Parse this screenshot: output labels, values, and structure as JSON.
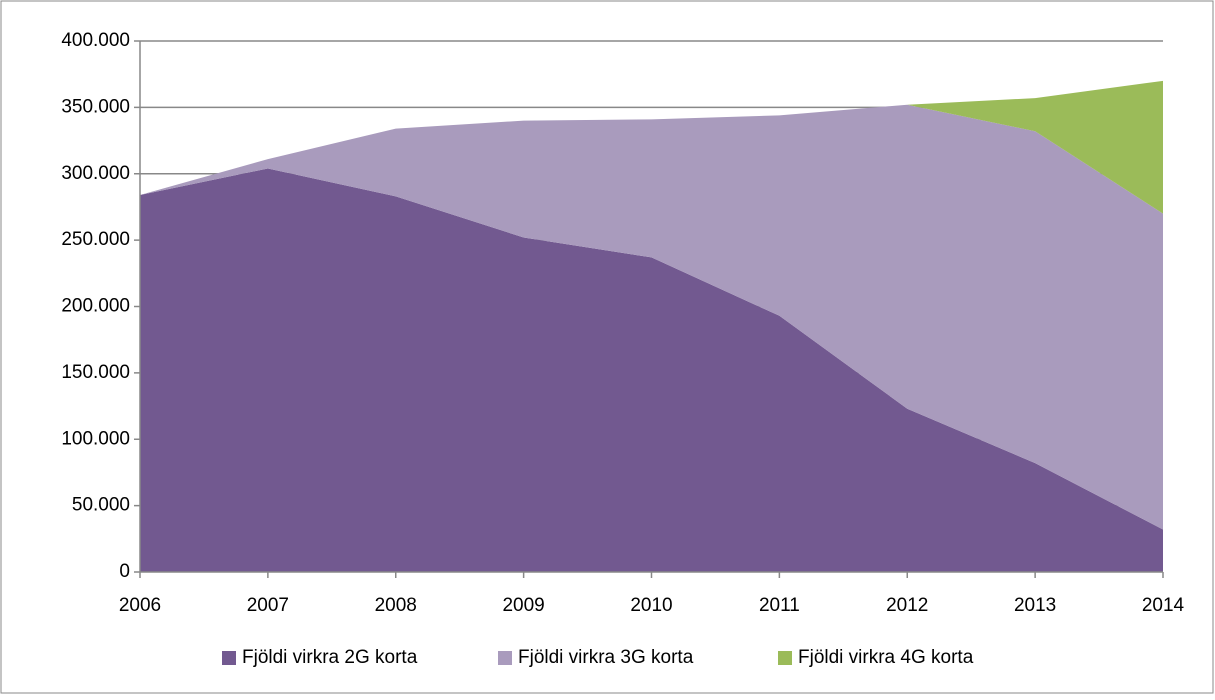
{
  "chart_data": {
    "type": "stacked_area",
    "categories": [
      "2006",
      "2007",
      "2008",
      "2009",
      "2010",
      "2011",
      "2012",
      "2013",
      "2014"
    ],
    "series": [
      {
        "name": "Fjöldi virkra 2G korta",
        "color": "#725990",
        "values": [
          284000,
          304000,
          283000,
          252000,
          237000,
          193000,
          123000,
          82000,
          32000
        ]
      },
      {
        "name": "Fjöldi virkra 3G korta",
        "color": "#a99bbd",
        "values": [
          0,
          7000,
          51000,
          88000,
          104000,
          151000,
          229000,
          250000,
          238000
        ]
      },
      {
        "name": "Fjöldi virkra 4G korta",
        "color": "#9bbb59",
        "values": [
          0,
          0,
          0,
          0,
          0,
          0,
          0,
          25000,
          100000
        ]
      }
    ],
    "ylim": [
      0,
      400000
    ],
    "yticks": [
      0,
      {
        "value": 50000,
        "label": "50.000"
      },
      {
        "value": 100000,
        "label": "100.000"
      },
      {
        "value": 150000,
        "label": "150.000"
      },
      {
        "value": 200000,
        "label": "200.000"
      },
      {
        "value": 250000,
        "label": "250.000"
      },
      {
        "value": 300000,
        "label": "300.000"
      },
      {
        "value": 350000,
        "label": "350.000"
      },
      {
        "value": 400000,
        "label": "400.000"
      }
    ],
    "grid": true,
    "legend": "bottom"
  }
}
